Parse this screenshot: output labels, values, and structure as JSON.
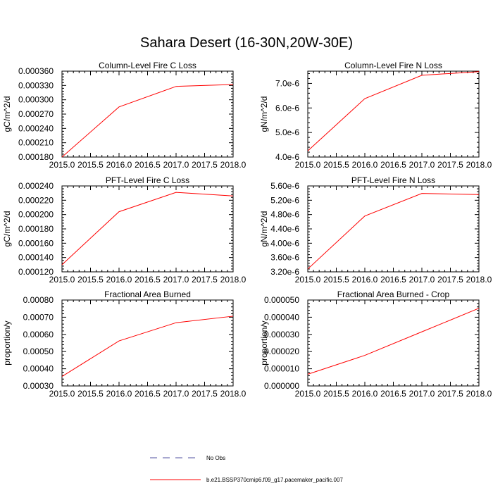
{
  "title": "Sahara Desert (16-30N,20W-30E)",
  "chart_data": [
    {
      "type": "line",
      "title": "Column-Level Fire C Loss",
      "xlabel": "",
      "ylabel": "gC/m^2/d",
      "xlim": [
        2015.0,
        2018.0
      ],
      "ylim": [
        0.00018,
        0.00036
      ],
      "xticks": [
        "2015.0",
        "2015.5",
        "2016.0",
        "2016.5",
        "2017.0",
        "2017.5",
        "2018.0"
      ],
      "yticks": [
        "0.000180",
        "0.000210",
        "0.000240",
        "0.000270",
        "0.000300",
        "0.000330",
        "0.000360"
      ],
      "series": [
        {
          "name": "b.e21.BSSP370cmip6.f09_g17.pacemaker_pacific.007",
          "color": "#ff0000",
          "x": [
            2015.0,
            2016.0,
            2017.0,
            2018.0
          ],
          "values": [
            0.00018,
            0.000285,
            0.000328,
            0.000332
          ]
        }
      ]
    },
    {
      "type": "line",
      "title": "Column-Level Fire N Loss",
      "xlabel": "",
      "ylabel": "gN/m^2/d",
      "xlim": [
        2015.0,
        2018.0
      ],
      "ylim": [
        4e-06,
        7.5e-06
      ],
      "xticks": [
        "2015.0",
        "2015.5",
        "2016.0",
        "2016.5",
        "2017.0",
        "2017.5",
        "2018.0"
      ],
      "yticks": [
        "4.0e-6",
        "5.0e-6",
        "6.0e-6",
        "7.0e-6"
      ],
      "series": [
        {
          "name": "b.e21.BSSP370cmip6.f09_g17.pacemaker_pacific.007",
          "color": "#ff0000",
          "x": [
            2015.0,
            2016.0,
            2017.0,
            2018.0
          ],
          "values": [
            4.25e-06,
            6.38e-06,
            7.33e-06,
            7.48e-06
          ]
        }
      ]
    },
    {
      "type": "line",
      "title": "PFT-Level Fire C Loss",
      "xlabel": "",
      "ylabel": "gC/m^2/d",
      "xlim": [
        2015.0,
        2018.0
      ],
      "ylim": [
        0.00012,
        0.00024
      ],
      "xticks": [
        "2015.0",
        "2015.5",
        "2016.0",
        "2016.5",
        "2017.0",
        "2017.5",
        "2018.0"
      ],
      "yticks": [
        "0.000120",
        "0.000140",
        "0.000160",
        "0.000180",
        "0.000200",
        "0.000220",
        "0.000240"
      ],
      "series": [
        {
          "name": "b.e21.BSSP370cmip6.f09_g17.pacemaker_pacific.007",
          "color": "#ff0000",
          "x": [
            2015.0,
            2016.0,
            2017.0,
            2018.0
          ],
          "values": [
            0.00013,
            0.000204,
            0.000231,
            0.000226
          ]
        }
      ]
    },
    {
      "type": "line",
      "title": "PFT-Level Fire N Loss",
      "xlabel": "",
      "ylabel": "gN/m^2/d",
      "xlim": [
        2015.0,
        2018.0
      ],
      "ylim": [
        3.2e-06,
        5.6e-06
      ],
      "xticks": [
        "2015.0",
        "2015.5",
        "2016.0",
        "2016.5",
        "2017.0",
        "2017.5",
        "2018.0"
      ],
      "yticks": [
        "3.20e-6",
        "3.60e-6",
        "4.00e-6",
        "4.40e-6",
        "4.80e-6",
        "5.20e-6",
        "5.60e-6"
      ],
      "series": [
        {
          "name": "b.e21.BSSP370cmip6.f09_g17.pacemaker_pacific.007",
          "color": "#ff0000",
          "x": [
            2015.0,
            2016.0,
            2017.0,
            2018.0
          ],
          "values": [
            3.28e-06,
            4.76e-06,
            5.39e-06,
            5.36e-06
          ]
        }
      ]
    },
    {
      "type": "line",
      "title": "Fractional Area Burned",
      "xlabel": "",
      "ylabel": "proportion/y",
      "xlim": [
        2015.0,
        2018.0
      ],
      "ylim": [
        0.0003,
        0.0008
      ],
      "xticks": [
        "2015.0",
        "2015.5",
        "2016.0",
        "2016.5",
        "2017.0",
        "2017.5",
        "2018.0"
      ],
      "yticks": [
        "0.00030",
        "0.00040",
        "0.00050",
        "0.00060",
        "0.00070",
        "0.00080"
      ],
      "series": [
        {
          "name": "b.e21.BSSP370cmip6.f09_g17.pacemaker_pacific.007",
          "color": "#ff0000",
          "x": [
            2015.0,
            2016.0,
            2017.0,
            2018.0
          ],
          "values": [
            0.000355,
            0.000562,
            0.000668,
            0.000706
          ]
        }
      ]
    },
    {
      "type": "line",
      "title": "Fractional Area Burned - Crop",
      "xlabel": "",
      "ylabel": "proportion/y",
      "xlim": [
        2015.0,
        2018.0
      ],
      "ylim": [
        0.0,
        5e-05
      ],
      "xticks": [
        "2015.0",
        "2015.5",
        "2016.0",
        "2016.5",
        "2017.0",
        "2017.5",
        "2018.0"
      ],
      "yticks": [
        "0.000000",
        "0.000010",
        "0.000020",
        "0.000030",
        "0.000040",
        "0.000050"
      ],
      "series": [
        {
          "name": "b.e21.BSSP370cmip6.f09_g17.pacemaker_pacific.007",
          "color": "#ff0000",
          "x": [
            2015.0,
            2016.0,
            2017.0,
            2018.0
          ],
          "values": [
            6.8e-06,
            1.78e-05,
            3.15e-05,
            4.52e-05
          ]
        }
      ]
    }
  ],
  "legend": [
    {
      "label": "No Obs",
      "color": "#5050a0",
      "dash": "dashed"
    },
    {
      "label": "b.e21.BSSP370cmip6.f09_g17.pacemaker_pacific.007",
      "color": "#ff0000",
      "dash": "solid"
    }
  ]
}
